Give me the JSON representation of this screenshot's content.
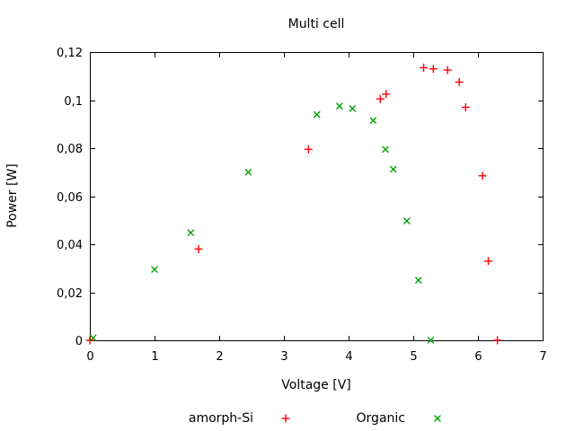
{
  "chart_data": {
    "type": "scatter",
    "title": "Multi cell",
    "xlabel": "Voltage [V]",
    "ylabel": "Power [W]",
    "xlim": [
      0,
      7
    ],
    "ylim": [
      0,
      0.12
    ],
    "grid": false,
    "decimal_separator": ",",
    "legend_position": "bottom-center",
    "frame_color": "#000000",
    "xticks": [
      {
        "value": 0,
        "label": "0"
      },
      {
        "value": 1,
        "label": "1"
      },
      {
        "value": 2,
        "label": "2"
      },
      {
        "value": 3,
        "label": "3"
      },
      {
        "value": 4,
        "label": "4"
      },
      {
        "value": 5,
        "label": "5"
      },
      {
        "value": 6,
        "label": "6"
      },
      {
        "value": 7,
        "label": "7"
      }
    ],
    "yticks": [
      {
        "value": 0,
        "label": "0"
      },
      {
        "value": 0.02,
        "label": "0,02"
      },
      {
        "value": 0.04,
        "label": "0,04"
      },
      {
        "value": 0.06,
        "label": "0,06"
      },
      {
        "value": 0.08,
        "label": "0,08"
      },
      {
        "value": 0.1,
        "label": "0,1"
      },
      {
        "value": 0.12,
        "label": "0,12"
      }
    ],
    "series": [
      {
        "name": "amorph-Si",
        "marker": "plus",
        "color": "#ff0000",
        "points": [
          [
            0.0,
            0.0
          ],
          [
            1.68,
            0.038
          ],
          [
            3.38,
            0.0795
          ],
          [
            4.49,
            0.1005
          ],
          [
            4.58,
            0.1025
          ],
          [
            5.16,
            0.1135
          ],
          [
            5.31,
            0.113
          ],
          [
            5.53,
            0.1125
          ],
          [
            5.71,
            0.1075
          ],
          [
            5.81,
            0.097
          ],
          [
            6.07,
            0.0685
          ],
          [
            6.16,
            0.033
          ],
          [
            6.3,
            0.0
          ]
        ]
      },
      {
        "name": "Organic",
        "marker": "cross",
        "color": "#00a000",
        "points": [
          [
            0.05,
            0.001
          ],
          [
            1.0,
            0.0295
          ],
          [
            1.56,
            0.0448
          ],
          [
            2.45,
            0.07
          ],
          [
            3.51,
            0.094
          ],
          [
            3.86,
            0.0975
          ],
          [
            4.06,
            0.0965
          ],
          [
            4.38,
            0.0915
          ],
          [
            4.57,
            0.0795
          ],
          [
            4.69,
            0.0712
          ],
          [
            4.9,
            0.0497
          ],
          [
            5.08,
            0.025
          ],
          [
            5.27,
            0.0
          ]
        ]
      }
    ]
  }
}
